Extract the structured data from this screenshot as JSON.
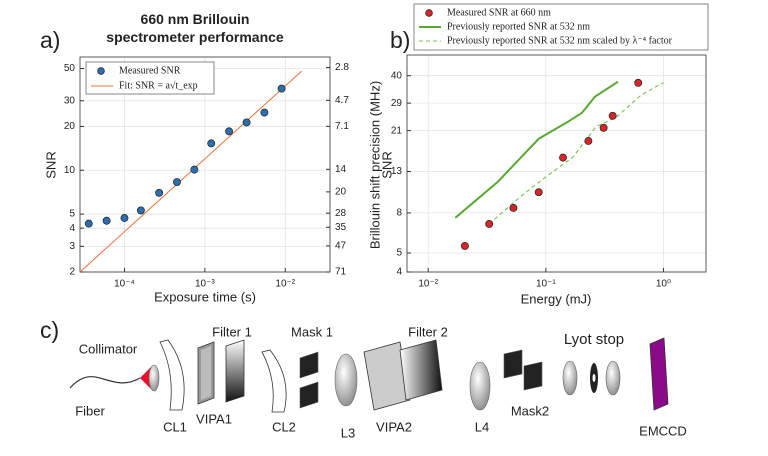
{
  "chart_data": [
    {
      "type": "scatter",
      "panel": "a)",
      "title": "660 nm Brillouin spectrometer performance",
      "xlabel": "Exposure time  (s)",
      "ylabel": "SNR",
      "y2label": "Brillouin shift precision (MHz)",
      "xscale": "log",
      "yscale": "log",
      "y2scale": "log",
      "xlim": [
        2.8e-05,
        0.036
      ],
      "ylim": [
        2,
        60
      ],
      "y2lim": [
        71,
        2.37
      ],
      "xticks": [
        {
          "value": 0.0001,
          "label": "10⁻⁴"
        },
        {
          "value": 0.001,
          "label": "10⁻³"
        },
        {
          "value": 0.01,
          "label": "10⁻²"
        }
      ],
      "yticks": [
        2,
        3,
        4,
        5,
        10,
        20,
        30,
        50
      ],
      "y2ticks": [
        2.8,
        4.7,
        7.1,
        14,
        20,
        28,
        35,
        47,
        71
      ],
      "grid": true,
      "legend": "upper left",
      "series": [
        {
          "name": "Measured SNR",
          "mode": "markers",
          "color": "#2c6fae",
          "x": [
            3.6e-05,
            6e-05,
            0.0001,
            0.00016,
            0.00027,
            0.00045,
            0.00074,
            0.0012,
            0.002,
            0.0033,
            0.0055,
            0.009
          ],
          "values": [
            4.3,
            4.5,
            4.7,
            5.3,
            7,
            8.3,
            10.1,
            15.3,
            18.5,
            21.3,
            24.9,
            36.4
          ]
        },
        {
          "name": "Fit: SNR = a√t_exp",
          "mode": "line",
          "color": "#e8743b",
          "x": [
            2.8e-05,
            0.016
          ],
          "values": [
            2,
            48
          ]
        }
      ]
    },
    {
      "type": "scatter",
      "panel": "b)",
      "xlabel": "Energy (mJ)",
      "ylabel": "SNR",
      "xscale": "log",
      "yscale": "log",
      "xlim": [
        0.0066,
        2.3
      ],
      "ylim": [
        4,
        51
      ],
      "xticks": [
        {
          "value": 0.01,
          "label": "10⁻²"
        },
        {
          "value": 0.1,
          "label": "10⁻¹"
        },
        {
          "value": 1,
          "label": "10⁰"
        }
      ],
      "yticks": [
        4,
        5,
        8,
        13,
        21,
        29,
        40
      ],
      "grid": true,
      "legend": "above",
      "series": [
        {
          "name": "Measured SNR at 660 nm",
          "mode": "markers",
          "color": "#d62728",
          "x": [
            0.0205,
            0.033,
            0.053,
            0.087,
            0.14,
            0.23,
            0.31,
            0.37,
            0.61
          ],
          "values": [
            5.43,
            7.03,
            8.48,
            10.2,
            15.3,
            18.6,
            21.7,
            25.0,
            36.8
          ]
        },
        {
          "name": "Previously reported SNR at 532 nm",
          "mode": "line",
          "color": "#5aa832",
          "x": [
            0.017,
            0.0389,
            0.0872,
            0.154,
            0.203,
            0.262,
            0.411
          ],
          "values": [
            7.55,
            11.5,
            19.1,
            23.3,
            25.9,
            31.3,
            37.3
          ]
        },
        {
          "name": "Previously reported SNR at 532 nm scaled by λ⁻⁴ factor",
          "mode": "line",
          "linestyle": "dashed",
          "color": "#7cbf4e",
          "x": [
            0.033,
            0.061,
            0.1,
            0.17,
            0.267,
            0.397,
            0.65,
            1.0
          ],
          "values": [
            7.03,
            9.7,
            12.2,
            15.4,
            22.0,
            24.6,
            32.0,
            36.9
          ]
        }
      ]
    }
  ],
  "diagram": {
    "panel": "c)",
    "collimator": "Collimator",
    "fiber": "Fiber",
    "cl1": "CL1",
    "vipa1": "VIPA1",
    "filter1": "Filter 1",
    "cl2": "CL2",
    "mask1": "Mask 1",
    "l3": "L3",
    "vipa2": "VIPA2",
    "filter2": "Filter 2",
    "l4": "L4",
    "mask2": "Mask2",
    "lyot": "Lyot stop",
    "emccd": "EMCCD"
  }
}
